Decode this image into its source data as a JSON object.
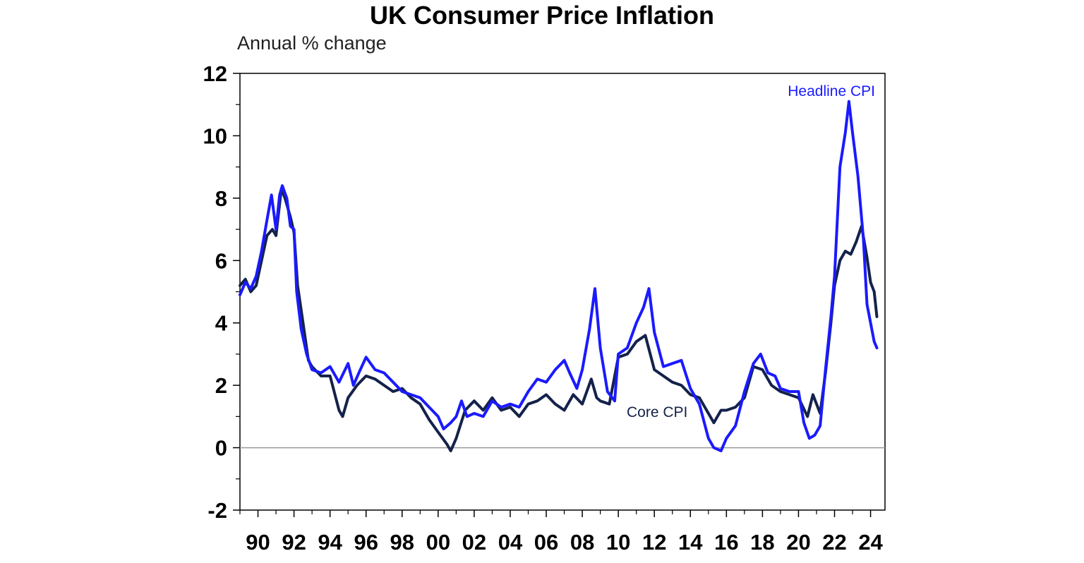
{
  "chart_data": {
    "type": "line",
    "title": "UK Consumer Price Inflation",
    "ylabel": "Annual % change",
    "ylim": [
      -2,
      12
    ],
    "xlim": [
      1989.0,
      2024.8
    ],
    "y_ticks": [
      "-2",
      "0",
      "2",
      "4",
      "6",
      "8",
      "10",
      "12"
    ],
    "x_ticks": [
      {
        "label": "90",
        "x": 1990
      },
      {
        "label": "92",
        "x": 1992
      },
      {
        "label": "94",
        "x": 1994
      },
      {
        "label": "96",
        "x": 1996
      },
      {
        "label": "98",
        "x": 1998
      },
      {
        "label": "00",
        "x": 2000
      },
      {
        "label": "02",
        "x": 2002
      },
      {
        "label": "04",
        "x": 2004
      },
      {
        "label": "06",
        "x": 2006
      },
      {
        "label": "08",
        "x": 2008
      },
      {
        "label": "10",
        "x": 2010
      },
      {
        "label": "12",
        "x": 2012
      },
      {
        "label": "14",
        "x": 2014
      },
      {
        "label": "16",
        "x": 2016
      },
      {
        "label": "18",
        "x": 2018
      },
      {
        "label": "20",
        "x": 2020
      },
      {
        "label": "22",
        "x": 2022
      },
      {
        "label": "24",
        "x": 2024
      }
    ],
    "grid": false,
    "zero_line": true,
    "series": [
      {
        "name": "Headline CPI",
        "color": "#1a1aff",
        "label_color": "#1a1aff",
        "points": [
          [
            1989.0,
            4.9
          ],
          [
            1989.3,
            5.3
          ],
          [
            1989.6,
            5.1
          ],
          [
            1989.9,
            5.5
          ],
          [
            1990.2,
            6.3
          ],
          [
            1990.5,
            7.3
          ],
          [
            1990.75,
            8.1
          ],
          [
            1991.0,
            7.0
          ],
          [
            1991.2,
            8.1
          ],
          [
            1991.35,
            8.4
          ],
          [
            1991.6,
            8.0
          ],
          [
            1991.8,
            7.1
          ],
          [
            1992.0,
            7.0
          ],
          [
            1992.15,
            5.0
          ],
          [
            1992.4,
            3.8
          ],
          [
            1992.7,
            3.0
          ],
          [
            1993.0,
            2.5
          ],
          [
            1993.5,
            2.4
          ],
          [
            1994.0,
            2.6
          ],
          [
            1994.5,
            2.1
          ],
          [
            1995.0,
            2.7
          ],
          [
            1995.3,
            2.0
          ],
          [
            1995.6,
            2.4
          ],
          [
            1996.0,
            2.9
          ],
          [
            1996.5,
            2.5
          ],
          [
            1997.0,
            2.4
          ],
          [
            1997.5,
            2.1
          ],
          [
            1998.0,
            1.8
          ],
          [
            1998.5,
            1.7
          ],
          [
            1999.0,
            1.6
          ],
          [
            1999.5,
            1.3
          ],
          [
            2000.0,
            1.0
          ],
          [
            2000.3,
            0.6
          ],
          [
            2000.7,
            0.8
          ],
          [
            2001.0,
            1.0
          ],
          [
            2001.3,
            1.5
          ],
          [
            2001.6,
            1.0
          ],
          [
            2002.0,
            1.1
          ],
          [
            2002.5,
            1.0
          ],
          [
            2003.0,
            1.5
          ],
          [
            2003.5,
            1.3
          ],
          [
            2004.0,
            1.4
          ],
          [
            2004.5,
            1.3
          ],
          [
            2005.0,
            1.8
          ],
          [
            2005.5,
            2.2
          ],
          [
            2006.0,
            2.1
          ],
          [
            2006.5,
            2.5
          ],
          [
            2007.0,
            2.8
          ],
          [
            2007.3,
            2.4
          ],
          [
            2007.7,
            1.9
          ],
          [
            2008.0,
            2.5
          ],
          [
            2008.4,
            3.8
          ],
          [
            2008.7,
            5.1
          ],
          [
            2009.0,
            3.2
          ],
          [
            2009.4,
            1.8
          ],
          [
            2009.8,
            1.5
          ],
          [
            2010.0,
            3.0
          ],
          [
            2010.5,
            3.2
          ],
          [
            2011.0,
            4.0
          ],
          [
            2011.4,
            4.5
          ],
          [
            2011.7,
            5.1
          ],
          [
            2012.0,
            3.7
          ],
          [
            2012.5,
            2.6
          ],
          [
            2013.0,
            2.7
          ],
          [
            2013.5,
            2.8
          ],
          [
            2014.0,
            1.9
          ],
          [
            2014.5,
            1.4
          ],
          [
            2015.0,
            0.3
          ],
          [
            2015.3,
            0.0
          ],
          [
            2015.7,
            -0.1
          ],
          [
            2016.0,
            0.3
          ],
          [
            2016.5,
            0.7
          ],
          [
            2017.0,
            1.8
          ],
          [
            2017.5,
            2.7
          ],
          [
            2017.9,
            3.0
          ],
          [
            2018.3,
            2.4
          ],
          [
            2018.7,
            2.3
          ],
          [
            2019.0,
            1.9
          ],
          [
            2019.5,
            1.8
          ],
          [
            2020.0,
            1.8
          ],
          [
            2020.3,
            0.8
          ],
          [
            2020.6,
            0.3
          ],
          [
            2020.9,
            0.4
          ],
          [
            2021.2,
            0.7
          ],
          [
            2021.5,
            2.5
          ],
          [
            2021.8,
            4.2
          ],
          [
            2022.0,
            5.5
          ],
          [
            2022.3,
            9.0
          ],
          [
            2022.6,
            10.1
          ],
          [
            2022.8,
            11.1
          ],
          [
            2023.0,
            10.1
          ],
          [
            2023.3,
            8.7
          ],
          [
            2023.6,
            6.7
          ],
          [
            2023.8,
            4.6
          ],
          [
            2024.0,
            4.0
          ],
          [
            2024.2,
            3.4
          ],
          [
            2024.35,
            3.2
          ]
        ]
      },
      {
        "name": "Core CPI",
        "color": "#14224a",
        "label_color": "#14224a",
        "points": [
          [
            1989.0,
            5.2
          ],
          [
            1989.3,
            5.4
          ],
          [
            1989.6,
            5.0
          ],
          [
            1989.9,
            5.2
          ],
          [
            1990.2,
            6.0
          ],
          [
            1990.5,
            6.8
          ],
          [
            1990.8,
            7.0
          ],
          [
            1991.0,
            6.8
          ],
          [
            1991.3,
            8.3
          ],
          [
            1991.5,
            8.0
          ],
          [
            1991.8,
            7.4
          ],
          [
            1992.0,
            6.9
          ],
          [
            1992.2,
            5.2
          ],
          [
            1992.5,
            4.0
          ],
          [
            1992.8,
            2.8
          ],
          [
            1993.0,
            2.6
          ],
          [
            1993.5,
            2.3
          ],
          [
            1994.0,
            2.3
          ],
          [
            1994.5,
            1.2
          ],
          [
            1994.7,
            1.0
          ],
          [
            1995.0,
            1.6
          ],
          [
            1995.5,
            2.0
          ],
          [
            1996.0,
            2.3
          ],
          [
            1996.5,
            2.2
          ],
          [
            1997.0,
            2.0
          ],
          [
            1997.5,
            1.8
          ],
          [
            1998.0,
            1.9
          ],
          [
            1998.5,
            1.6
          ],
          [
            1999.0,
            1.4
          ],
          [
            1999.5,
            0.9
          ],
          [
            2000.0,
            0.5
          ],
          [
            2000.5,
            0.1
          ],
          [
            2000.7,
            -0.1
          ],
          [
            2001.0,
            0.3
          ],
          [
            2001.5,
            1.2
          ],
          [
            2002.0,
            1.5
          ],
          [
            2002.5,
            1.2
          ],
          [
            2003.0,
            1.6
          ],
          [
            2003.5,
            1.2
          ],
          [
            2004.0,
            1.3
          ],
          [
            2004.5,
            1.0
          ],
          [
            2005.0,
            1.4
          ],
          [
            2005.5,
            1.5
          ],
          [
            2006.0,
            1.7
          ],
          [
            2006.5,
            1.4
          ],
          [
            2007.0,
            1.2
          ],
          [
            2007.5,
            1.7
          ],
          [
            2008.0,
            1.4
          ],
          [
            2008.5,
            2.2
          ],
          [
            2008.8,
            1.6
          ],
          [
            2009.0,
            1.5
          ],
          [
            2009.5,
            1.4
          ],
          [
            2010.0,
            2.9
          ],
          [
            2010.5,
            3.0
          ],
          [
            2011.0,
            3.4
          ],
          [
            2011.5,
            3.6
          ],
          [
            2012.0,
            2.5
          ],
          [
            2012.5,
            2.3
          ],
          [
            2013.0,
            2.1
          ],
          [
            2013.5,
            2.0
          ],
          [
            2014.0,
            1.7
          ],
          [
            2014.5,
            1.6
          ],
          [
            2015.0,
            1.1
          ],
          [
            2015.3,
            0.8
          ],
          [
            2015.7,
            1.2
          ],
          [
            2016.0,
            1.2
          ],
          [
            2016.5,
            1.3
          ],
          [
            2017.0,
            1.6
          ],
          [
            2017.5,
            2.6
          ],
          [
            2018.0,
            2.5
          ],
          [
            2018.5,
            2.0
          ],
          [
            2019.0,
            1.8
          ],
          [
            2019.5,
            1.7
          ],
          [
            2020.0,
            1.6
          ],
          [
            2020.5,
            1.0
          ],
          [
            2020.8,
            1.7
          ],
          [
            2021.2,
            1.1
          ],
          [
            2021.5,
            2.4
          ],
          [
            2021.8,
            4.0
          ],
          [
            2022.0,
            5.2
          ],
          [
            2022.3,
            6.0
          ],
          [
            2022.6,
            6.3
          ],
          [
            2022.9,
            6.2
          ],
          [
            2023.2,
            6.6
          ],
          [
            2023.5,
            7.1
          ],
          [
            2023.8,
            6.1
          ],
          [
            2024.0,
            5.3
          ],
          [
            2024.2,
            5.0
          ],
          [
            2024.35,
            4.2
          ]
        ]
      }
    ]
  }
}
